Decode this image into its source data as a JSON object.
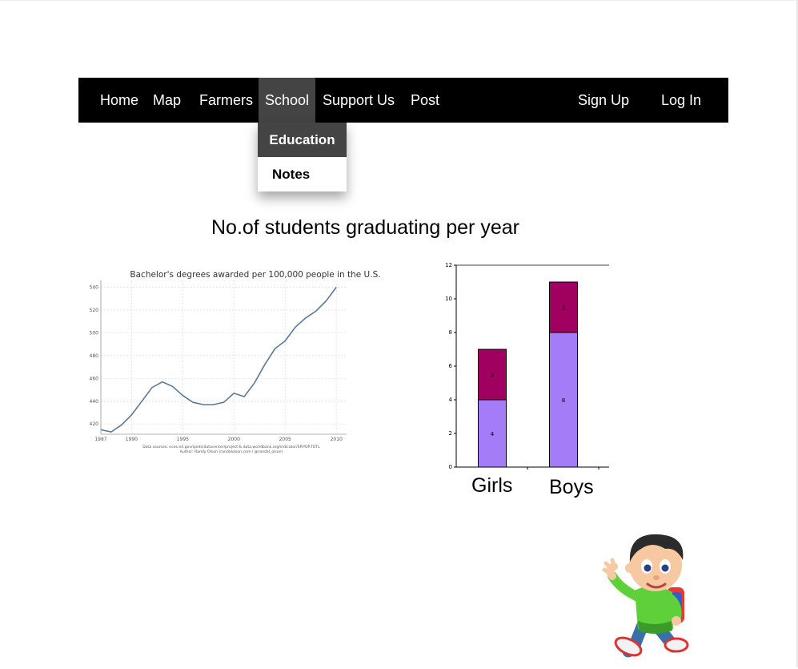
{
  "nav": {
    "items": [
      {
        "label": "Home"
      },
      {
        "label": "Map"
      },
      {
        "label": "Farmers"
      },
      {
        "label": "School"
      },
      {
        "label": "Support Us"
      },
      {
        "label": "Post"
      }
    ],
    "right": [
      {
        "label": "Sign Up"
      },
      {
        "label": "Log In"
      }
    ]
  },
  "dropdown": {
    "items": [
      {
        "label": "Education"
      },
      {
        "label": "Notes"
      }
    ]
  },
  "page": {
    "title": "No.of students graduating per year"
  },
  "colors": {
    "navbar_bg": "#000000",
    "active_bg": "#444444",
    "line": "#5a7a99",
    "bar_bottom": "#a57cf7",
    "bar_top": "#a0005f"
  },
  "chart_data": [
    {
      "type": "line",
      "title": "Bachelor's degrees awarded per 100,000 people in the U.S.",
      "xlabel": "",
      "ylabel": "",
      "x": [
        1987,
        1988,
        1989,
        1990,
        1991,
        1992,
        1993,
        1994,
        1995,
        1996,
        1997,
        1998,
        1999,
        2000,
        2001,
        2002,
        2003,
        2004,
        2005,
        2006,
        2007,
        2008,
        2009,
        2010
      ],
      "series": [
        {
          "values": [
            415,
            413,
            419,
            428,
            440,
            452,
            457,
            453,
            445,
            439,
            437,
            437,
            439,
            447,
            444,
            456,
            472,
            486,
            493,
            505,
            513,
            519,
            528,
            540
          ]
        }
      ],
      "xticks": [
        "1987",
        "1990",
        "1995",
        "2000",
        "2005",
        "2010"
      ],
      "yticks": [
        "420",
        "440",
        "460",
        "480",
        "500",
        "520",
        "540"
      ],
      "xlim": [
        1987,
        2011
      ],
      "ylim": [
        411,
        546
      ],
      "grid": true,
      "footer": [
        "Data sources: nces.ed.gov/ipeds/datacenter/project & data.worldbank.org/indicator/SP.POP.TOTL",
        "Author: Randy Olson (randalolson.com / @randal_olson)"
      ]
    },
    {
      "type": "bar",
      "stacked": true,
      "categories": [
        "Girls",
        "Boys"
      ],
      "series": [
        {
          "values": [
            4,
            8
          ]
        },
        {
          "values": [
            3,
            3
          ]
        }
      ],
      "yticks": [
        "0",
        "2",
        "4",
        "6",
        "8",
        "10",
        "12"
      ],
      "ylim": [
        0,
        12
      ],
      "grid": false
    }
  ],
  "mascot": {
    "icon": "waving-boy-icon"
  }
}
